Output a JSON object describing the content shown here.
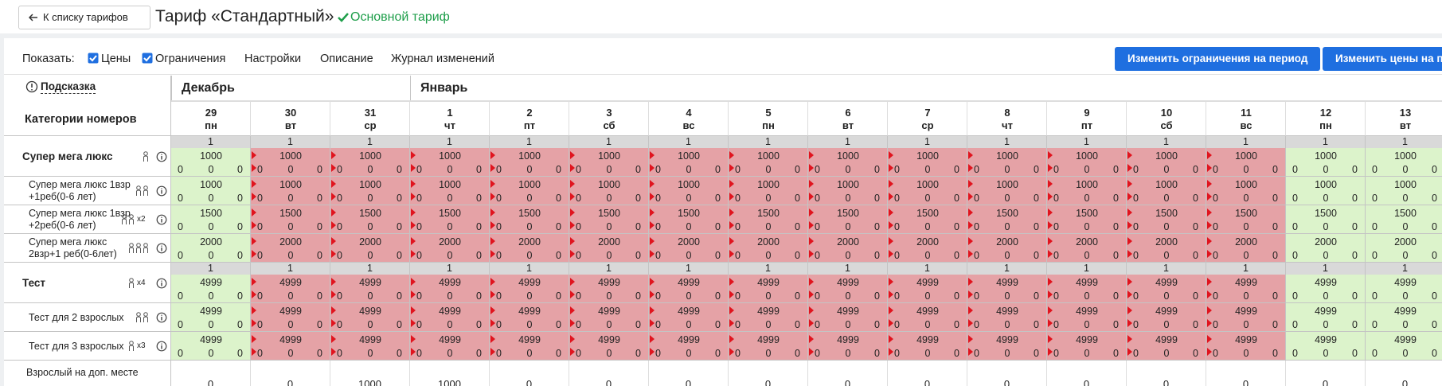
{
  "header": {
    "back": "К списку тарифов",
    "title": "Тариф «Стандартный»",
    "main_label": "Основной тариф"
  },
  "toolbar": {
    "show": "Показать:",
    "checks": [
      "Цены",
      "Ограничения"
    ],
    "tabs": [
      "Настройки",
      "Описание",
      "Журнал изменений"
    ],
    "buttons": [
      "Изменить ограничения на период",
      "Изменить цены на период"
    ]
  },
  "grid": {
    "hint": "Подсказка",
    "categories_header": "Категории номеров",
    "months": [
      "Декабрь",
      "Январь"
    ],
    "days": [
      29,
      30,
      31,
      1,
      2,
      3,
      4,
      5,
      6,
      7,
      8,
      9,
      10,
      11,
      12,
      13
    ],
    "weekdays": [
      "пн",
      "вт",
      "ср",
      "чт",
      "пт",
      "сб",
      "вс",
      "пн",
      "вт",
      "ср",
      "чт",
      "пт",
      "сб",
      "вс",
      "пн",
      "вт"
    ],
    "closed": [
      false,
      true,
      true,
      true,
      true,
      true,
      true,
      true,
      true,
      true,
      true,
      true,
      true,
      true,
      false,
      false
    ],
    "groups": [
      {
        "name": "Супер мега люкс",
        "persons": 1,
        "avail": [
          1,
          1,
          1,
          1,
          1,
          1,
          1,
          1,
          1,
          1,
          1,
          1,
          1,
          1,
          1,
          1
        ],
        "cells": [
          [
            1000,
            0,
            0,
            0
          ],
          [
            1000,
            0,
            0,
            0
          ],
          [
            1000,
            0,
            0,
            0
          ],
          [
            1000,
            0,
            0,
            0
          ],
          [
            1000,
            0,
            0,
            0
          ],
          [
            1000,
            0,
            0,
            0
          ],
          [
            1000,
            0,
            0,
            0
          ],
          [
            1000,
            0,
            0,
            0
          ],
          [
            1000,
            0,
            0,
            0
          ],
          [
            1000,
            0,
            0,
            0
          ],
          [
            1000,
            0,
            0,
            0
          ],
          [
            1000,
            0,
            0,
            0
          ],
          [
            1000,
            0,
            0,
            0
          ],
          [
            1000,
            0,
            0,
            0
          ],
          [
            1000,
            0,
            0,
            0
          ],
          [
            1000,
            0,
            0,
            0
          ]
        ],
        "rows": [
          {
            "name": "Супер мега люкс 1взр +1реб(0-6 лет)",
            "persons": 2,
            "cells": [
              [
                1000,
                0,
                0,
                0
              ],
              [
                1000,
                0,
                0,
                0
              ],
              [
                1000,
                0,
                0,
                0
              ],
              [
                1000,
                0,
                0,
                0
              ],
              [
                1000,
                0,
                0,
                0
              ],
              [
                1000,
                0,
                0,
                0
              ],
              [
                1000,
                0,
                0,
                0
              ],
              [
                1000,
                0,
                0,
                0
              ],
              [
                1000,
                0,
                0,
                0
              ],
              [
                1000,
                0,
                0,
                0
              ],
              [
                1000,
                0,
                0,
                0
              ],
              [
                1000,
                0,
                0,
                0
              ],
              [
                1000,
                0,
                0,
                0
              ],
              [
                1000,
                0,
                0,
                0
              ],
              [
                1000,
                0,
                0,
                0
              ],
              [
                1000,
                0,
                0,
                0
              ]
            ]
          },
          {
            "name": "Супер мега люкс 1взр +2реб(0-6 лет)",
            "persons": 2,
            "multiplier": "x2",
            "cells": [
              [
                1500,
                0,
                0,
                0
              ],
              [
                1500,
                0,
                0,
                0
              ],
              [
                1500,
                0,
                0,
                0
              ],
              [
                1500,
                0,
                0,
                0
              ],
              [
                1500,
                0,
                0,
                0
              ],
              [
                1500,
                0,
                0,
                0
              ],
              [
                1500,
                0,
                0,
                0
              ],
              [
                1500,
                0,
                0,
                0
              ],
              [
                1500,
                0,
                0,
                0
              ],
              [
                1500,
                0,
                0,
                0
              ],
              [
                1500,
                0,
                0,
                0
              ],
              [
                1500,
                0,
                0,
                0
              ],
              [
                1500,
                0,
                0,
                0
              ],
              [
                1500,
                0,
                0,
                0
              ],
              [
                1500,
                0,
                0,
                0
              ],
              [
                1500,
                0,
                0,
                0
              ]
            ]
          },
          {
            "name": "Супер мега люкс 2взр+1 реб(0-6лет)",
            "persons": 3,
            "cells": [
              [
                2000,
                0,
                0,
                0
              ],
              [
                2000,
                0,
                0,
                0
              ],
              [
                2000,
                0,
                0,
                0
              ],
              [
                2000,
                0,
                0,
                0
              ],
              [
                2000,
                0,
                0,
                0
              ],
              [
                2000,
                0,
                0,
                0
              ],
              [
                2000,
                0,
                0,
                0
              ],
              [
                2000,
                0,
                0,
                0
              ],
              [
                2000,
                0,
                0,
                0
              ],
              [
                2000,
                0,
                0,
                0
              ],
              [
                2000,
                0,
                0,
                0
              ],
              [
                2000,
                0,
                0,
                0
              ],
              [
                2000,
                0,
                0,
                0
              ],
              [
                2000,
                0,
                0,
                0
              ],
              [
                2000,
                0,
                0,
                0
              ],
              [
                2000,
                0,
                0,
                0
              ]
            ]
          }
        ]
      },
      {
        "name": "Тест",
        "persons": 1,
        "multiplier": "x4",
        "avail": [
          1,
          1,
          1,
          1,
          1,
          1,
          1,
          1,
          1,
          1,
          1,
          1,
          1,
          1,
          1,
          1
        ],
        "cells": [
          [
            4999,
            0,
            0,
            0
          ],
          [
            4999,
            0,
            0,
            0
          ],
          [
            4999,
            0,
            0,
            0
          ],
          [
            4999,
            0,
            0,
            0
          ],
          [
            4999,
            0,
            0,
            0
          ],
          [
            4999,
            0,
            0,
            0
          ],
          [
            4999,
            0,
            0,
            0
          ],
          [
            4999,
            0,
            0,
            0
          ],
          [
            4999,
            0,
            0,
            0
          ],
          [
            4999,
            0,
            0,
            0
          ],
          [
            4999,
            0,
            0,
            0
          ],
          [
            4999,
            0,
            0,
            0
          ],
          [
            4999,
            0,
            0,
            0
          ],
          [
            4999,
            0,
            0,
            0
          ],
          [
            4999,
            0,
            0,
            0
          ],
          [
            4999,
            0,
            0,
            0
          ]
        ],
        "rows": [
          {
            "name": "Тест для 2 взрослых",
            "persons": 2,
            "cells": [
              [
                4999,
                0,
                0,
                0
              ],
              [
                4999,
                0,
                0,
                0
              ],
              [
                4999,
                0,
                0,
                0
              ],
              [
                4999,
                0,
                0,
                0
              ],
              [
                4999,
                0,
                0,
                0
              ],
              [
                4999,
                0,
                0,
                0
              ],
              [
                4999,
                0,
                0,
                0
              ],
              [
                4999,
                0,
                0,
                0
              ],
              [
                4999,
                0,
                0,
                0
              ],
              [
                4999,
                0,
                0,
                0
              ],
              [
                4999,
                0,
                0,
                0
              ],
              [
                4999,
                0,
                0,
                0
              ],
              [
                4999,
                0,
                0,
                0
              ],
              [
                4999,
                0,
                0,
                0
              ],
              [
                4999,
                0,
                0,
                0
              ],
              [
                4999,
                0,
                0,
                0
              ]
            ]
          },
          {
            "name": "Тест для 3 взрослых",
            "persons": 1,
            "multiplier": "x3",
            "cells": [
              [
                4999,
                0,
                0,
                0
              ],
              [
                4999,
                0,
                0,
                0
              ],
              [
                4999,
                0,
                0,
                0
              ],
              [
                4999,
                0,
                0,
                0
              ],
              [
                4999,
                0,
                0,
                0
              ],
              [
                4999,
                0,
                0,
                0
              ],
              [
                4999,
                0,
                0,
                0
              ],
              [
                4999,
                0,
                0,
                0
              ],
              [
                4999,
                0,
                0,
                0
              ],
              [
                4999,
                0,
                0,
                0
              ],
              [
                4999,
                0,
                0,
                0
              ],
              [
                4999,
                0,
                0,
                0
              ],
              [
                4999,
                0,
                0,
                0
              ],
              [
                4999,
                0,
                0,
                0
              ],
              [
                4999,
                0,
                0,
                0
              ],
              [
                4999,
                0,
                0,
                0
              ]
            ]
          }
        ]
      }
    ],
    "extra": {
      "name": "Взрослый на доп. месте",
      "values": [
        0,
        0,
        1000,
        1000,
        0,
        0,
        0,
        0,
        0,
        0,
        0,
        0,
        0,
        0,
        0,
        0
      ]
    }
  }
}
